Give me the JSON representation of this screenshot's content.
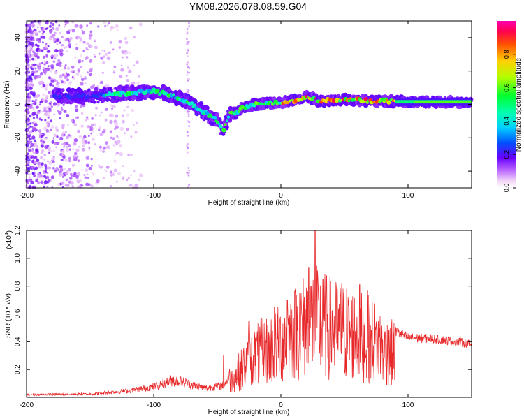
{
  "figure_title": "YM08.2026.078.08.59.G04",
  "colors": {
    "snr_line": "#e8292b",
    "background_line": "#e8292b"
  },
  "chart_data": [
    {
      "type": "heatmap",
      "name": "spectrogram",
      "xlabel": "Height of straight line (km)",
      "ylabel": "Frequency (Hz)",
      "xlim": [
        -200,
        150
      ],
      "ylim": [
        -50,
        50
      ],
      "x_ticks": [
        -200,
        -100,
        0,
        100
      ],
      "y_ticks": [
        -40,
        -20,
        0,
        20,
        40
      ],
      "colorbar": {
        "label": "Normalized spectral amplitude",
        "range": [
          0,
          1
        ],
        "ticks": [
          "0.0",
          "0.2",
          "0.4",
          "0.6",
          "0.8"
        ],
        "tick_values": [
          0.0,
          0.2,
          0.4,
          0.6,
          0.8
        ]
      },
      "ridge": {
        "description_points_km_hz": [
          [
            -175,
            5
          ],
          [
            -150,
            5
          ],
          [
            -130,
            6
          ],
          [
            -115,
            7
          ],
          [
            -100,
            8
          ],
          [
            -90,
            6
          ],
          [
            -80,
            4
          ],
          [
            -70,
            0
          ],
          [
            -60,
            -5
          ],
          [
            -50,
            -10
          ],
          [
            -45,
            -16
          ],
          [
            -40,
            -5
          ],
          [
            -35,
            -5
          ],
          [
            -30,
            -2
          ],
          [
            -20,
            0
          ],
          [
            -10,
            1
          ],
          [
            0,
            1
          ],
          [
            15,
            3
          ],
          [
            20,
            5
          ],
          [
            30,
            2
          ],
          [
            50,
            3
          ],
          [
            70,
            2
          ],
          [
            85,
            2
          ],
          [
            100,
            1.5
          ],
          [
            150,
            1.5
          ]
        ]
      }
    },
    {
      "type": "line",
      "name": "snr",
      "xlabel": "Height of straight line (km)",
      "ylabel": "SNR (10 * v/v)",
      "multiplier_label": "(x10",
      "multiplier_exp": "4",
      "multiplier_close": ")",
      "xlim": [
        -200,
        150
      ],
      "ylim": [
        0,
        12000
      ],
      "x_ticks": [
        -200,
        -100,
        0,
        100
      ],
      "y_ticks": [
        "0.2",
        "0.4",
        "0.6",
        "0.8",
        "1.0",
        "1.2"
      ],
      "y_tick_values": [
        2000,
        4000,
        6000,
        8000,
        10000,
        12000
      ],
      "envelope_km_snr": [
        [
          -200,
          200
        ],
        [
          -150,
          250
        ],
        [
          -120,
          500
        ],
        [
          -100,
          800
        ],
        [
          -85,
          1300
        ],
        [
          -75,
          1100
        ],
        [
          -60,
          700
        ],
        [
          -45,
          900
        ],
        [
          -35,
          2500
        ],
        [
          -25,
          4000
        ],
        [
          -15,
          5000
        ],
        [
          -5,
          5500
        ],
        [
          5,
          6500
        ],
        [
          15,
          7500
        ],
        [
          25,
          8500
        ],
        [
          40,
          7500
        ],
        [
          55,
          7000
        ],
        [
          70,
          6500
        ],
        [
          85,
          5000
        ],
        [
          100,
          4300
        ],
        [
          120,
          4200
        ],
        [
          140,
          4000
        ],
        [
          150,
          3800
        ]
      ],
      "peaks_km_snr": [
        [
          -73,
          1200
        ],
        [
          -45,
          3000
        ],
        [
          -25,
          5500
        ],
        [
          -5,
          6500
        ],
        [
          5,
          7000
        ],
        [
          15,
          7500
        ],
        [
          22,
          9300
        ],
        [
          27,
          12000
        ],
        [
          33,
          8500
        ],
        [
          48,
          8200
        ],
        [
          62,
          8100
        ],
        [
          68,
          7700
        ],
        [
          85,
          4800
        ]
      ]
    }
  ]
}
